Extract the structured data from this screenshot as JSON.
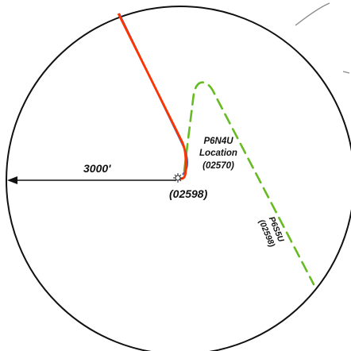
{
  "map": {
    "radius_label": "3000'",
    "well_label": "(02598)",
    "p6n4u": {
      "name": "P6N4U",
      "line2": "Location",
      "id": "(02570)"
    },
    "p6s5u": {
      "name": "P6S5U",
      "id": "(02598)"
    },
    "colors": {
      "radius_circle": "#111111",
      "red_path": "#ff3300",
      "blue_path": "#5566aa",
      "green_path": "#66bb22",
      "marker": "#333333",
      "background": "#ffffff"
    },
    "icons": {
      "well_marker": "sunburst-well-icon"
    }
  }
}
